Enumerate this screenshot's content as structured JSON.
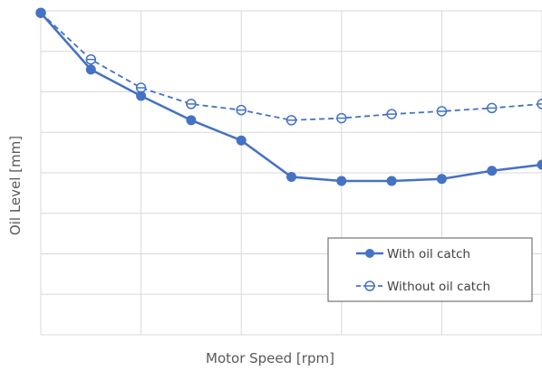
{
  "chart_data": {
    "type": "line",
    "xlabel": "Motor Speed [rpm]",
    "ylabel": "Oil Level [mm]",
    "xlim": [
      0,
      10
    ],
    "ylim": [
      0,
      8
    ],
    "x_tick_labels_shown": false,
    "y_tick_labels_shown": false,
    "grid": "vertical and horizontal, light gray",
    "legend_placement": "bottom-right",
    "x": [
      0,
      1,
      2,
      3,
      4,
      5,
      6,
      7,
      8,
      9,
      10
    ],
    "series": [
      {
        "name": "With oil catch",
        "style": "solid line, filled circle markers",
        "color": "#4472C4",
        "values": [
          7.95,
          6.55,
          5.9,
          5.3,
          4.8,
          3.9,
          3.8,
          3.8,
          3.85,
          4.05,
          4.2
        ]
      },
      {
        "name": "Without oil catch",
        "style": "dashed line, open circle markers",
        "color": "#4472C4",
        "values": [
          7.95,
          6.8,
          6.1,
          5.7,
          5.55,
          5.3,
          5.35,
          5.45,
          5.52,
          5.6,
          5.7
        ]
      }
    ]
  }
}
